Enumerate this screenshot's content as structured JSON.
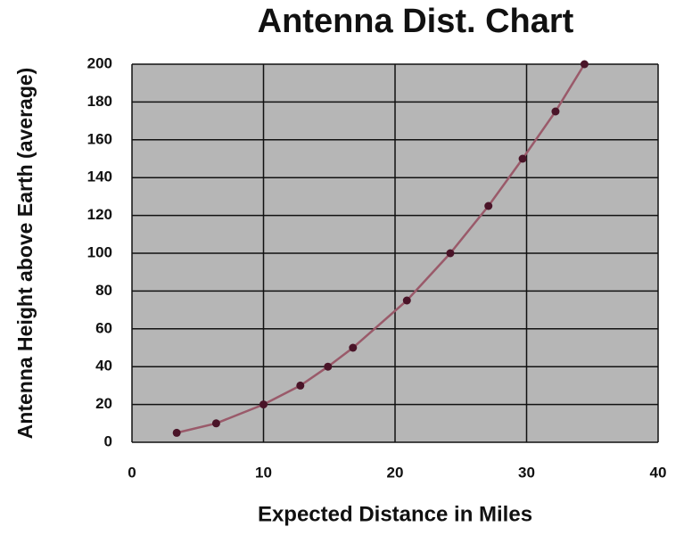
{
  "chart_data": {
    "type": "scatter",
    "title": "Antenna Dist. Chart",
    "x_label": "Expected Distance in Miles",
    "y_label": "Antenna Height above Earth (average)",
    "x": [
      3.4,
      6.4,
      10,
      12.8,
      14.9,
      16.8,
      20.9,
      24.2,
      27.1,
      29.7,
      32.2,
      34.4
    ],
    "values": [
      5,
      10,
      20,
      30,
      40,
      50,
      75,
      100,
      125,
      150,
      175,
      200
    ],
    "color": "#9a5a6a",
    "marker_color": "#4a1428",
    "plot_background": "#b6b6b6",
    "xlim": [
      0,
      40
    ],
    "xticks": [
      0,
      10,
      20,
      30,
      40
    ],
    "ylim": [
      0,
      200
    ],
    "yticks": [
      0,
      20,
      40,
      60,
      80,
      100,
      120,
      140,
      160,
      180,
      200
    ],
    "grid": true
  }
}
